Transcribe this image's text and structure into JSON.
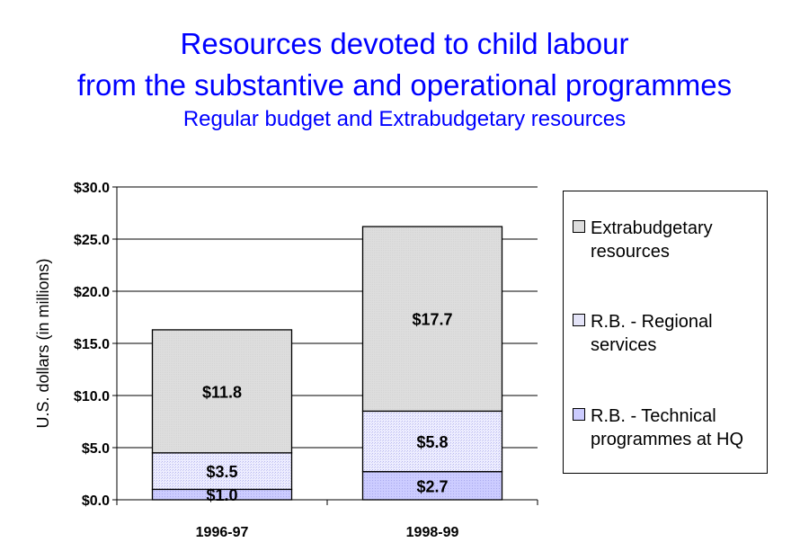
{
  "chart_data": {
    "type": "bar",
    "stacked": true,
    "title": "Resources devoted to child labour",
    "title_line2": "from the substantive and operational programmes",
    "subtitle": "Regular budget and Extrabudgetary resources",
    "xlabel": "",
    "ylabel": "U.S. dollars (in millions)",
    "ylim": [
      0,
      30
    ],
    "yticks": [
      "$0.0",
      "$5.0",
      "$10.0",
      "$15.0",
      "$20.0",
      "$25.0",
      "$30.0"
    ],
    "categories": [
      "1996-97",
      "1998-99"
    ],
    "series": [
      {
        "name": "R.B. - Technical programmes at HQ",
        "values": [
          1.0,
          2.7
        ],
        "labels": [
          "$1.0",
          "$2.7"
        ],
        "color": "#ccccff"
      },
      {
        "name": "R.B. - Regional services",
        "values": [
          3.5,
          5.8
        ],
        "labels": [
          "$3.5",
          "$5.8"
        ],
        "color": "#e4e4f8"
      },
      {
        "name": "Extrabudgetary resources",
        "values": [
          11.8,
          17.7
        ],
        "labels": [
          "$11.8",
          "$17.7"
        ],
        "color": "#dddddd"
      }
    ],
    "legend": {
      "placement": "right",
      "items": [
        {
          "line1": "Extrabudgetary",
          "line2": "resources"
        },
        {
          "line1": "R.B. - Regional",
          "line2": "services"
        },
        {
          "line1": "R.B. - Technical",
          "line2": "programmes at HQ"
        }
      ]
    },
    "grid": true
  },
  "title_color": "#0000ff"
}
